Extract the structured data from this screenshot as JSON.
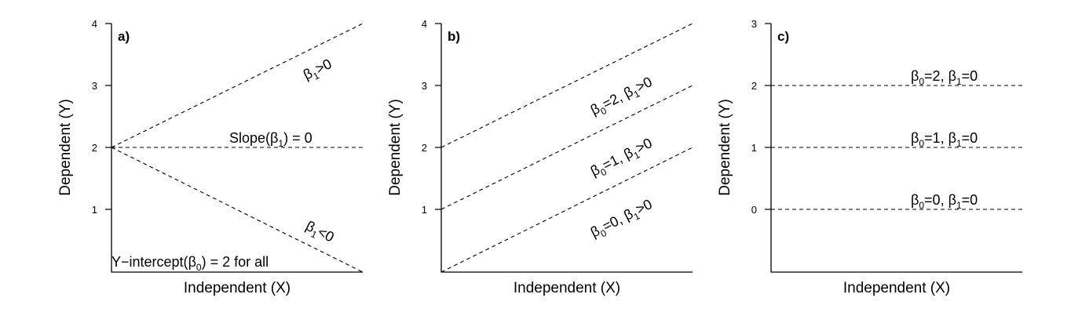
{
  "chart_data": [
    {
      "type": "line",
      "panel_label": "a)",
      "xlabel": "Independent (X)",
      "ylabel": "Dependent (Y)",
      "ylim": [
        0,
        4
      ],
      "yticks": [
        "1",
        "2",
        "3",
        "4"
      ],
      "lines": [
        {
          "y_start": 2,
          "y_end": 4
        },
        {
          "y_start": 2,
          "y_end": 2
        },
        {
          "y_start": 2,
          "y_end": 0
        }
      ],
      "annotations": [
        {
          "text": "β1>0"
        },
        {
          "text": "Slope(β1) = 0"
        },
        {
          "text": "β1<0"
        },
        {
          "text": "Y−intercept(β0) = 2 for all"
        }
      ]
    },
    {
      "type": "line",
      "panel_label": "b)",
      "xlabel": "Independent (X)",
      "ylabel": "Dependent (Y)",
      "ylim": [
        0,
        4
      ],
      "yticks": [
        "1",
        "2",
        "3",
        "4"
      ],
      "lines": [
        {
          "y_start": 2,
          "y_end": 4
        },
        {
          "y_start": 1,
          "y_end": 3
        },
        {
          "y_start": 0,
          "y_end": 2
        }
      ],
      "annotations": [
        {
          "text": "β0=2, β1>0"
        },
        {
          "text": "β0=1, β1>0"
        },
        {
          "text": "β0=0, β1>0"
        }
      ]
    },
    {
      "type": "line",
      "panel_label": "c)",
      "xlabel": "Independent (X)",
      "ylabel": "Dependent (Y)",
      "ylim": [
        -1,
        3
      ],
      "yticks": [
        "0",
        "1",
        "2",
        "3"
      ],
      "lines": [
        {
          "y_start": 2,
          "y_end": 2
        },
        {
          "y_start": 1,
          "y_end": 1
        },
        {
          "y_start": 0,
          "y_end": 0
        }
      ],
      "annotations": [
        {
          "text": "β0=2, β1=0"
        },
        {
          "text": "β0=1, β1=0"
        },
        {
          "text": "β0=0, β1=0"
        }
      ]
    }
  ]
}
